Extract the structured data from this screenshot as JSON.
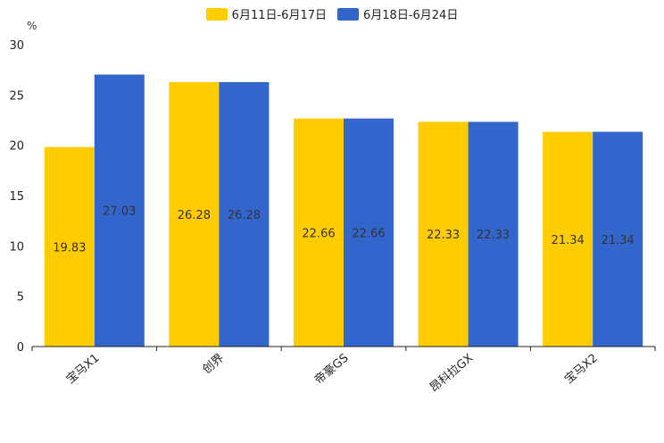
{
  "chart_data": {
    "type": "bar",
    "unit": "%",
    "categories": [
      "宝马X1",
      "创界",
      "帝豪GS",
      "昂科拉GX",
      "宝马X2"
    ],
    "series": [
      {
        "name": "6月11日-6月17日",
        "color": "#FFCC00",
        "values": [
          19.83,
          26.28,
          22.66,
          22.33,
          21.34
        ]
      },
      {
        "name": "6月18日-6月24日",
        "color": "#3366CC",
        "values": [
          27.03,
          26.28,
          22.66,
          22.33,
          21.34
        ]
      }
    ],
    "ylim": [
      0,
      30
    ],
    "yticks": [
      0,
      5,
      10,
      15,
      20,
      25,
      30
    ],
    "legend_position": "top-center"
  }
}
